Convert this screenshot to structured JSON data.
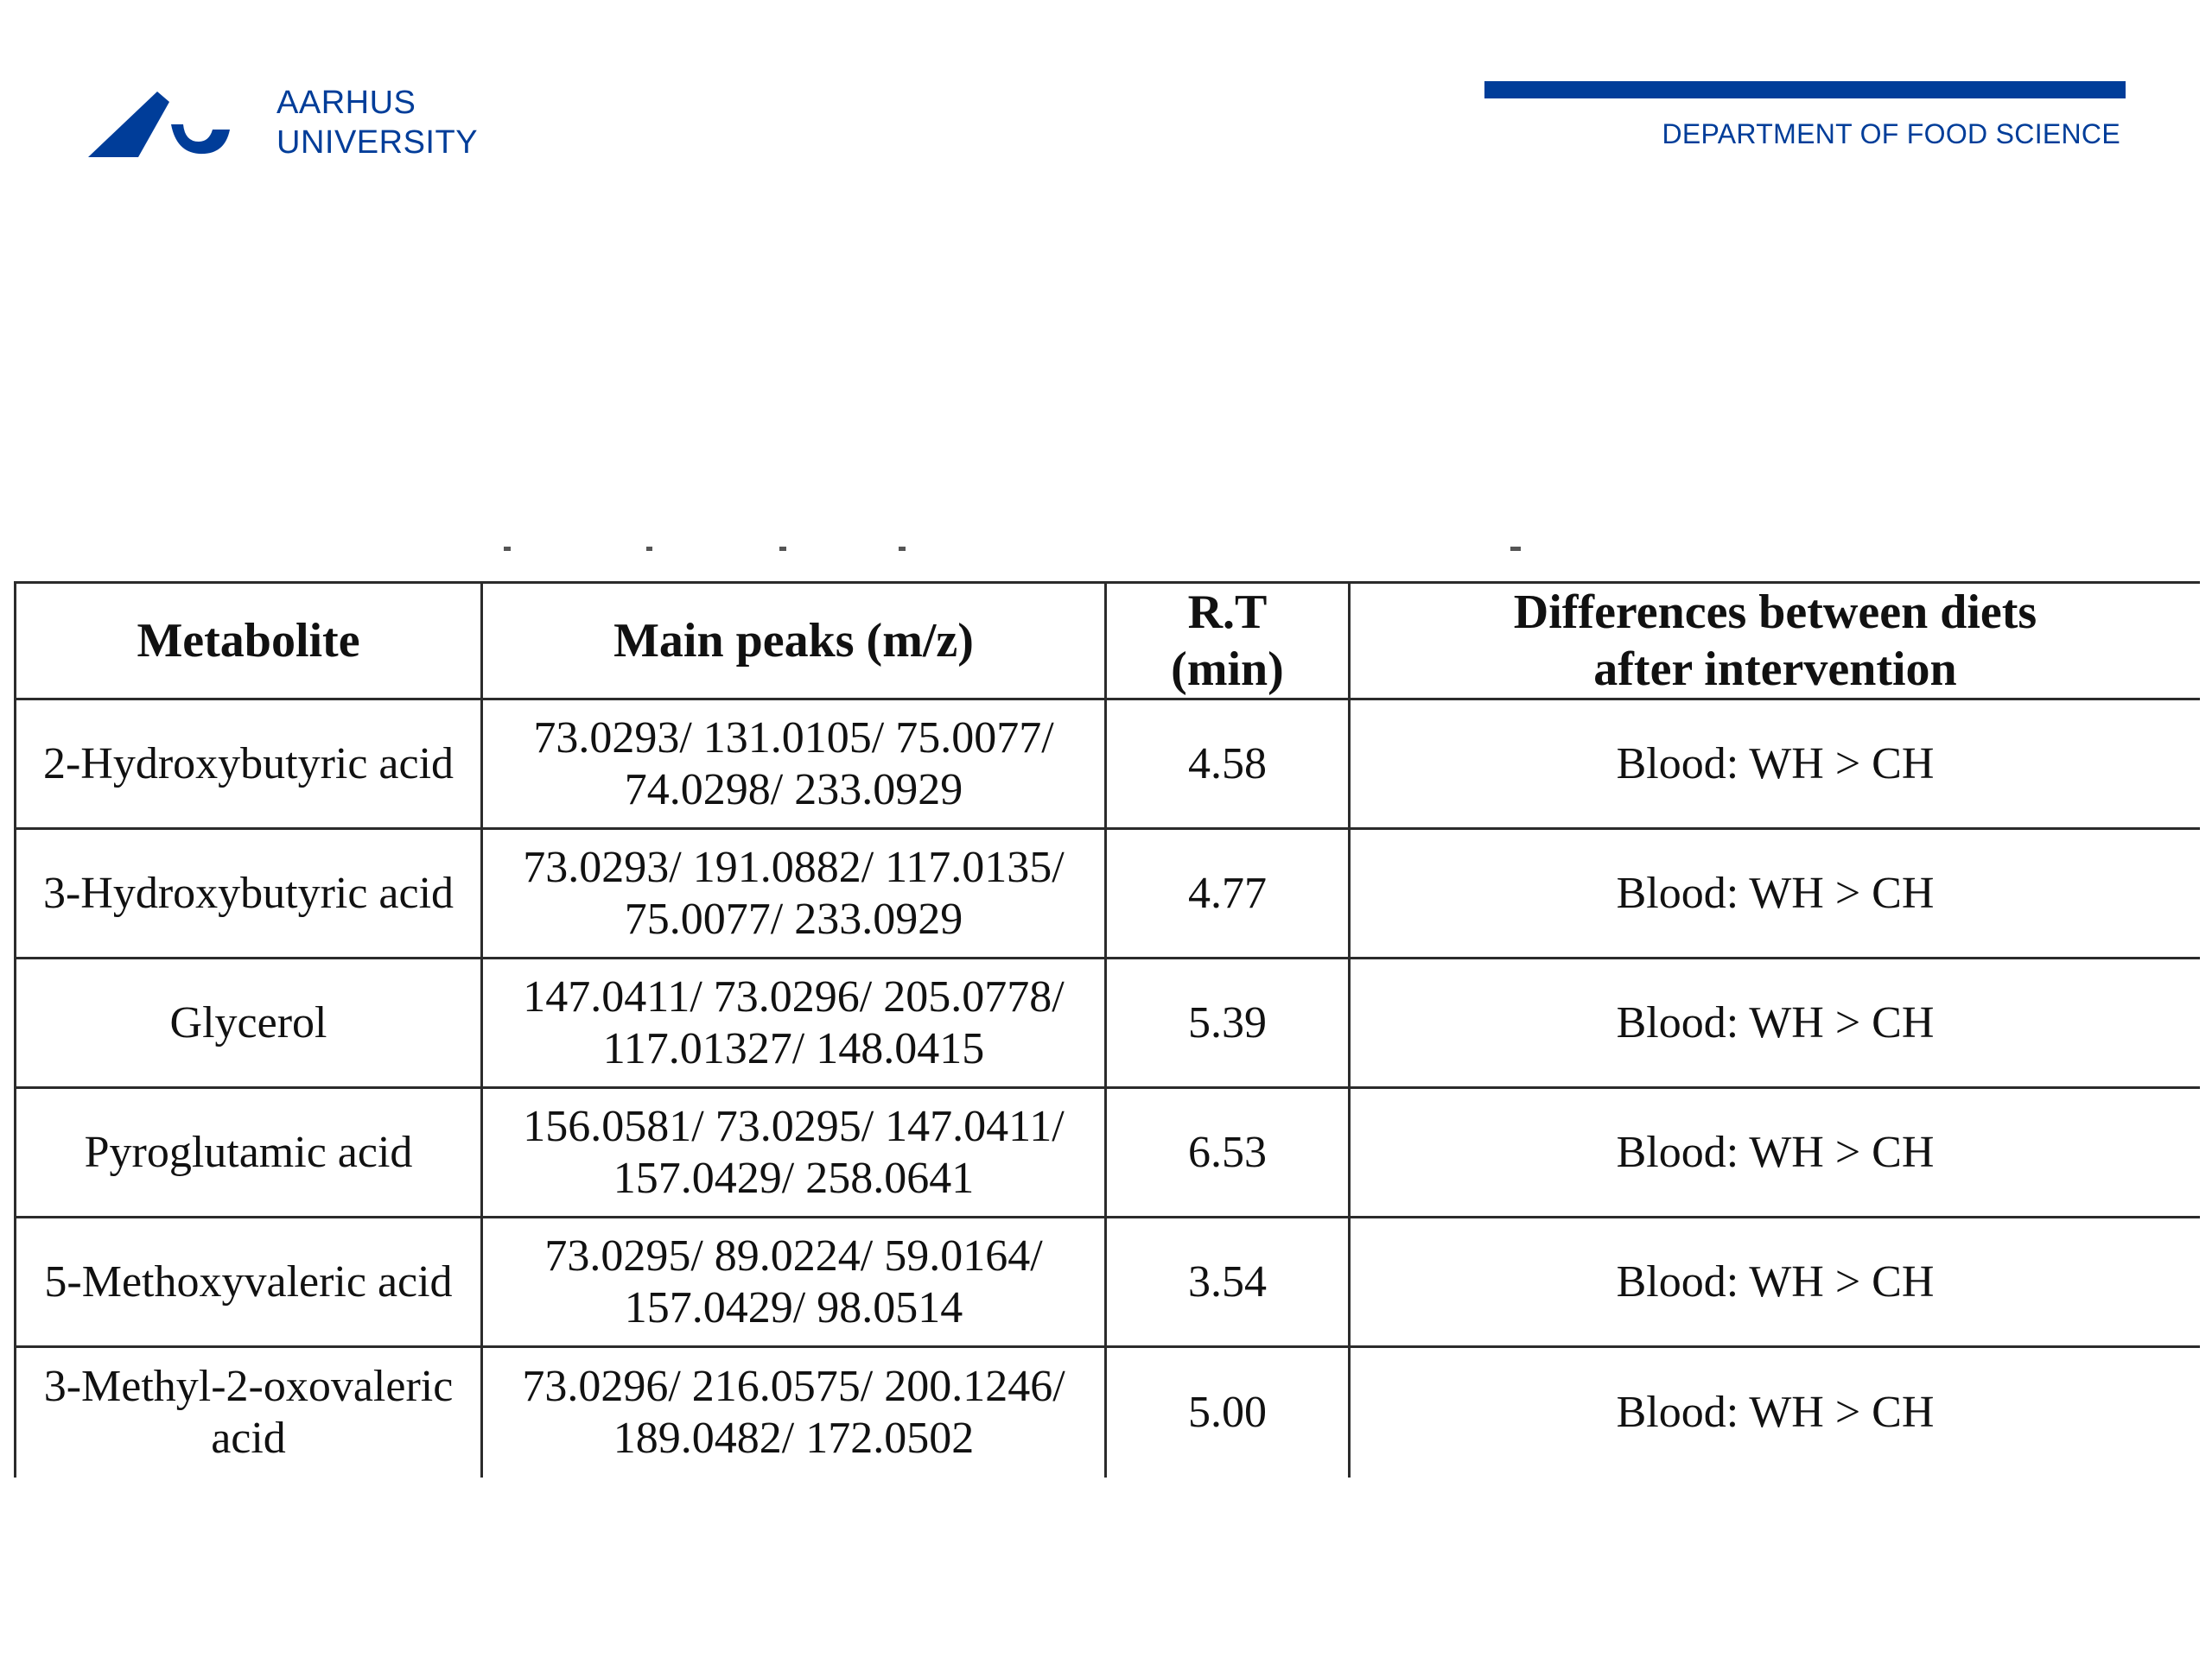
{
  "header": {
    "logo_icon": "aarhus-university-wave-logo",
    "logo_line1": "AARHUS",
    "logo_line2": "UNIVERSITY",
    "department": "DEPARTMENT OF FOOD SCIENCE",
    "brand_color": "#003d99"
  },
  "table": {
    "headers": {
      "metabolite": "Metabolite",
      "peaks": "Main peaks (m/z)",
      "rt_line1": "R.T",
      "rt_line2": "(min)",
      "diff_line1": "Differences between diets",
      "diff_line2": "after intervention"
    },
    "rows": [
      {
        "metabolite_l1": "2-Hydroxybutyric acid",
        "metabolite_l2": "",
        "peaks_l1": "73.0293/ 131.0105/ 75.0077/",
        "peaks_l2": "74.0298/ 233.0929",
        "rt": "4.58",
        "diff": "Blood: WH > CH"
      },
      {
        "metabolite_l1": "3-Hydroxybutyric acid",
        "metabolite_l2": "",
        "peaks_l1": "73.0293/ 191.0882/ 117.0135/",
        "peaks_l2": "75.0077/ 233.0929",
        "rt": "4.77",
        "diff": "Blood: WH > CH"
      },
      {
        "metabolite_l1": "Glycerol",
        "metabolite_l2": "",
        "peaks_l1": "147.0411/ 73.0296/ 205.0778/",
        "peaks_l2": "117.01327/ 148.0415",
        "rt": "5.39",
        "diff": "Blood: WH > CH"
      },
      {
        "metabolite_l1": "Pyroglutamic acid",
        "metabolite_l2": "",
        "peaks_l1": "156.0581/ 73.0295/ 147.0411/",
        "peaks_l2": "157.0429/ 258.0641",
        "rt": "6.53",
        "diff": "Blood: WH > CH"
      },
      {
        "metabolite_l1": "5-Methoxyvaleric acid",
        "metabolite_l2": "",
        "peaks_l1": "73.0295/ 89.0224/ 59.0164/",
        "peaks_l2": "157.0429/ 98.0514",
        "rt": "3.54",
        "diff": "Blood: WH > CH"
      },
      {
        "metabolite_l1": "3-Methyl-2-oxovaleric",
        "metabolite_l2": "acid",
        "peaks_l1": "73.0296/ 216.0575/ 200.1246/",
        "peaks_l2": "189.0482/ 172.0502",
        "rt": "5.00",
        "diff": "Blood: WH > CH"
      }
    ]
  }
}
